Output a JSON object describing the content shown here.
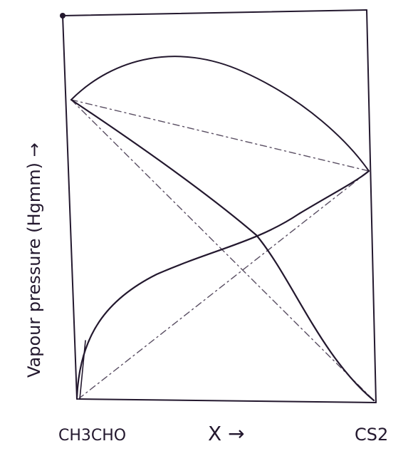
{
  "diagram": {
    "y_axis_label": "Vapour pressure (Hgmm) →",
    "x_axis_label": "X →",
    "left_component": "CH3CHO",
    "right_component": "CS2"
  }
}
